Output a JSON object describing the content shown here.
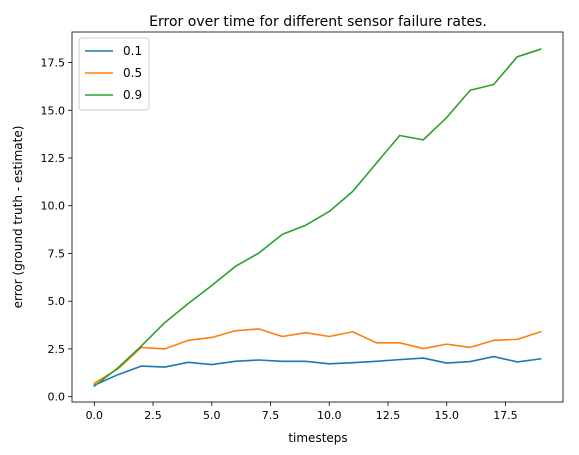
{
  "chart_data": {
    "type": "line",
    "title": "Error over time for different sensor failure rates.",
    "xlabel": "timesteps",
    "ylabel": "error (ground truth - estimate)",
    "xlim": [
      -0.95,
      19.95
    ],
    "ylim": [
      -0.28,
      19.1
    ],
    "xticks": [
      0.0,
      2.5,
      5.0,
      7.5,
      10.0,
      12.5,
      15.0,
      17.5
    ],
    "xtick_labels": [
      "0.0",
      "2.5",
      "5.0",
      "7.5",
      "10.0",
      "12.5",
      "15.0",
      "17.5"
    ],
    "yticks": [
      0.0,
      2.5,
      5.0,
      7.5,
      10.0,
      12.5,
      15.0,
      17.5
    ],
    "ytick_labels": [
      "0.0",
      "2.5",
      "5.0",
      "7.5",
      "10.0",
      "12.5",
      "15.0",
      "17.5"
    ],
    "grid": false,
    "legend_position": "upper-left",
    "x": [
      0,
      1,
      2,
      3,
      4,
      5,
      6,
      7,
      8,
      9,
      10,
      11,
      12,
      13,
      14,
      15,
      16,
      17,
      18,
      19
    ],
    "series": [
      {
        "name": "0.1",
        "color": "#1f77b4",
        "values": [
          0.6,
          1.15,
          1.6,
          1.55,
          1.8,
          1.68,
          1.85,
          1.92,
          1.85,
          1.85,
          1.72,
          1.78,
          1.85,
          1.94,
          2.02,
          1.76,
          1.84,
          2.1,
          1.82,
          1.98
        ]
      },
      {
        "name": "0.5",
        "color": "#ff7f0e",
        "values": [
          0.7,
          1.45,
          2.58,
          2.5,
          2.95,
          3.1,
          3.45,
          3.55,
          3.15,
          3.35,
          3.15,
          3.4,
          2.82,
          2.82,
          2.52,
          2.75,
          2.58,
          2.95,
          3.0,
          3.4
        ]
      },
      {
        "name": "0.9",
        "color": "#2ca02c",
        "values": [
          0.55,
          1.5,
          2.65,
          3.88,
          4.88,
          5.82,
          6.82,
          7.52,
          8.5,
          8.98,
          9.7,
          10.75,
          12.22,
          13.68,
          13.45,
          14.62,
          16.05,
          16.35,
          17.8,
          18.2
        ]
      }
    ]
  }
}
